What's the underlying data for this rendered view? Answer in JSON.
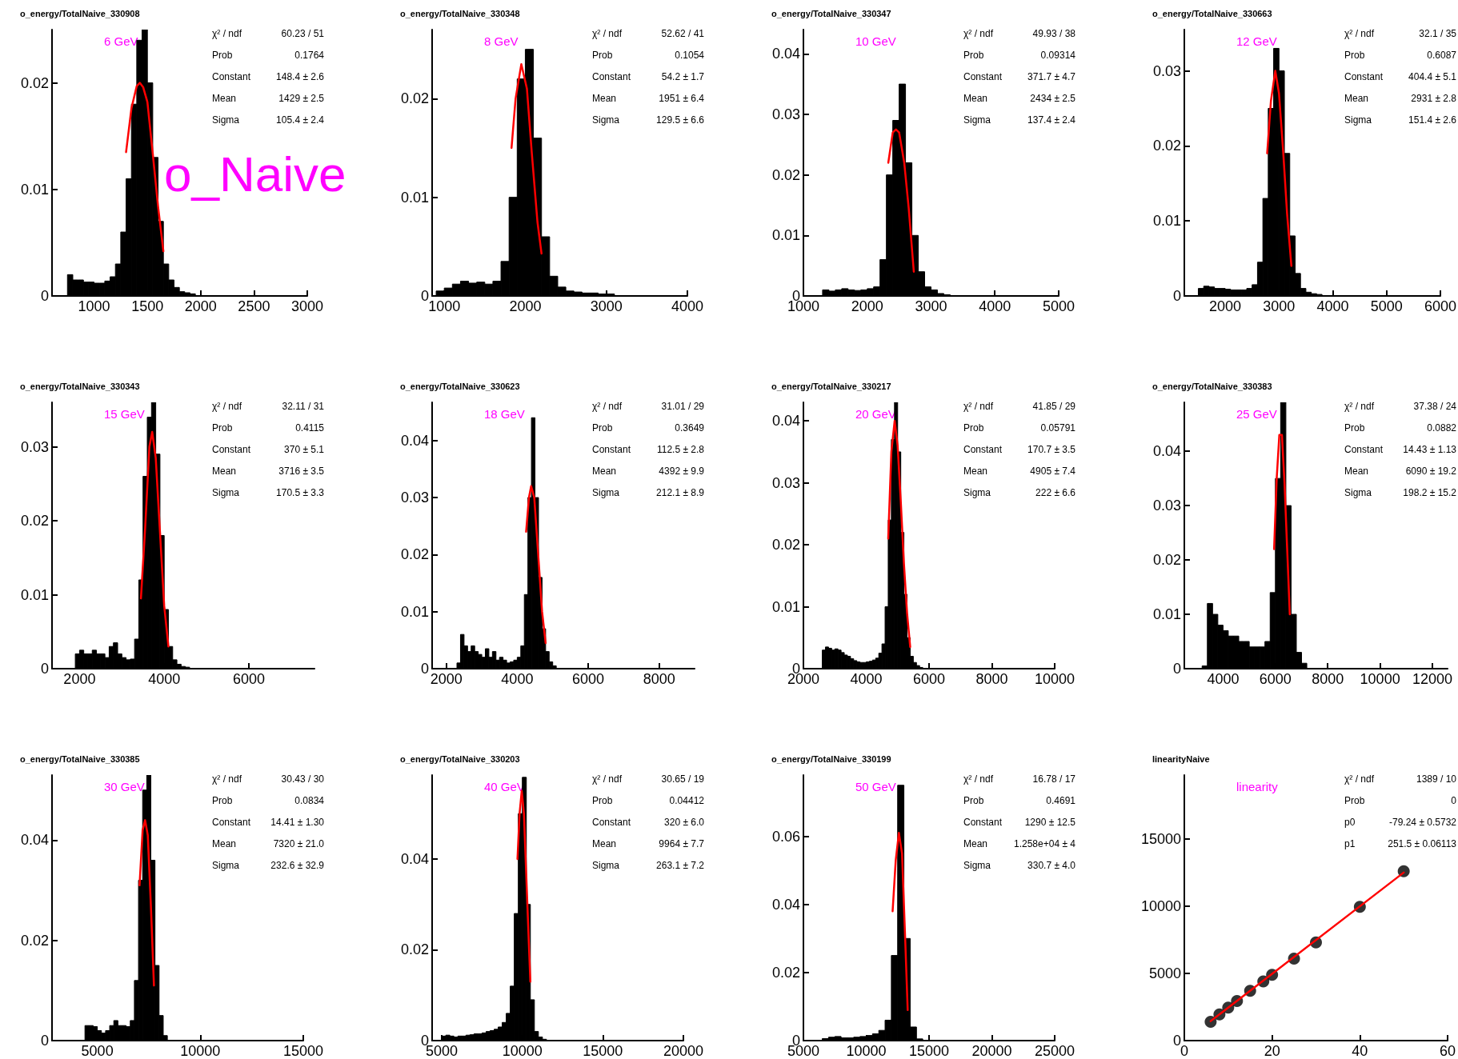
{
  "chart_data": [
    {
      "type": "histogram",
      "title": "o_energy/TotalNaive_330908",
      "subtitle": "o_Naive",
      "annotations": [
        "6 GeV",
        "χ² / ndf",
        "60.23 / 51",
        "Prob",
        "0.1764",
        "Constant",
        "148.4 ± 2.6",
        "Mean",
        "1429 ± 2.5",
        "Sigma",
        "105.4 ± 2.4"
      ],
      "xlim": [
        605,
        3000
      ],
      "xticks": [
        1000,
        1500,
        2000,
        2500,
        3000
      ],
      "ylim": [
        0,
        0.025
      ],
      "yticks": [
        0,
        0.01,
        0.02
      ],
      "series": [
        {
          "color": "#000000",
          "bins": [
            750,
            800,
            850,
            900,
            950,
            1000,
            1050,
            1100,
            1150,
            1200,
            1250,
            1300,
            1350,
            1400,
            1450,
            1500,
            1550,
            1600,
            1650,
            1700,
            1750,
            1800,
            1850,
            1900,
            1950,
            2000
          ],
          "values": [
            0.002,
            0.0015,
            0.0015,
            0.0013,
            0.0013,
            0.0012,
            0.0012,
            0.0014,
            0.0018,
            0.003,
            0.006,
            0.011,
            0.018,
            0.024,
            0.025,
            0.02,
            0.013,
            0.007,
            0.003,
            0.0015,
            0.0008,
            0.0004,
            0.0003,
            0.0002,
            null
          ]
        },
        {
          "type": "line",
          "color": "#ff0000",
          "x": [
            1300,
            1350,
            1400,
            1429,
            1460,
            1500,
            1550,
            1600,
            1650
          ],
          "values": [
            0.0135,
            0.0176,
            0.0197,
            0.02,
            0.0196,
            0.0182,
            0.0134,
            0.0084,
            0.0042
          ]
        }
      ]
    },
    {
      "type": "histogram",
      "title": "o_energy/TotalNaive_330348",
      "annotations": [
        "8 GeV",
        "χ² / ndf",
        "52.62 / 41",
        "Prob",
        "0.1054",
        "Constant",
        "54.2 ± 1.7",
        "Mean",
        "1951 ± 6.4",
        "Sigma",
        "129.5 ± 6.6"
      ],
      "xlim": [
        850,
        4000
      ],
      "xticks": [
        1000,
        2000,
        3000,
        4000
      ],
      "ylim": [
        0,
        0.027
      ],
      "yticks": [
        0,
        0.01,
        0.02
      ],
      "series": [
        {
          "color": "#000000",
          "bins": [
            900,
            1000,
            1100,
            1200,
            1300,
            1400,
            1500,
            1600,
            1700,
            1800,
            1900,
            2000,
            2100,
            2200,
            2300,
            2400,
            2500,
            2600,
            2700,
            2800,
            2900,
            3000,
            3100
          ],
          "values": [
            0.0005,
            0.0008,
            0.0012,
            0.0015,
            0.0013,
            0.0014,
            0.0012,
            0.0015,
            0.0035,
            0.01,
            0.022,
            0.025,
            0.016,
            0.006,
            0.002,
            0.0009,
            0.0005,
            0.0004,
            0.0003,
            0.0003,
            0.0002,
            0.0002
          ]
        },
        {
          "type": "line",
          "color": "#ff0000",
          "x": [
            1830,
            1880,
            1951,
            2020,
            2080,
            2150,
            2200
          ],
          "values": [
            0.015,
            0.02,
            0.0235,
            0.021,
            0.0145,
            0.0075,
            0.0043
          ]
        }
      ]
    },
    {
      "type": "histogram",
      "title": "o_energy/TotalNaive_330347",
      "annotations": [
        "10 GeV",
        "χ² / ndf",
        "49.93 / 38",
        "Prob",
        "0.09314",
        "Constant",
        "371.7 ± 4.7",
        "Mean",
        "2434 ± 2.5",
        "Sigma",
        "137.4 ± 2.4"
      ],
      "xlim": [
        1000,
        5000
      ],
      "xticks": [
        1000,
        2000,
        3000,
        4000,
        5000
      ],
      "ylim": [
        0,
        0.044
      ],
      "yticks": [
        0,
        0.01,
        0.02,
        0.03,
        0.04
      ],
      "series": [
        {
          "color": "#000000",
          "bins": [
            1300,
            1400,
            1500,
            1600,
            1700,
            1800,
            1900,
            2000,
            2100,
            2200,
            2300,
            2400,
            2500,
            2600,
            2700,
            2800,
            2900,
            3000,
            3100,
            3200,
            3300
          ],
          "values": [
            0.001,
            0.0008,
            0.001,
            0.0012,
            0.001,
            0.0009,
            0.001,
            0.0012,
            0.0015,
            0.006,
            0.02,
            0.029,
            0.035,
            0.022,
            0.01,
            0.004,
            0.0015,
            0.001,
            0.0004,
            0.0002
          ]
        },
        {
          "type": "line",
          "color": "#ff0000",
          "x": [
            2330,
            2400,
            2450,
            2500,
            2580,
            2650,
            2730
          ],
          "values": [
            0.022,
            0.027,
            0.0275,
            0.027,
            0.022,
            0.0145,
            0.004
          ]
        }
      ]
    },
    {
      "type": "histogram",
      "title": "o_energy/TotalNaive_330663",
      "annotations": [
        "12 GeV",
        "χ² / ndf",
        "32.1 / 35",
        "Prob",
        "0.6087",
        "Constant",
        "404.4 ± 5.1",
        "Mean",
        "2931 ± 2.8",
        "Sigma",
        "151.4 ± 2.6"
      ],
      "xlim": [
        1240,
        6000
      ],
      "xticks": [
        2000,
        3000,
        4000,
        5000,
        6000
      ],
      "ylim": [
        0,
        0.0355
      ],
      "yticks": [
        0,
        0.01,
        0.02,
        0.03
      ],
      "series": [
        {
          "color": "#000000",
          "bins": [
            1500,
            1600,
            1700,
            1800,
            1900,
            2000,
            2100,
            2200,
            2300,
            2400,
            2500,
            2600,
            2700,
            2800,
            2900,
            3000,
            3100,
            3200,
            3300,
            3400,
            3500,
            3600,
            3700,
            3800
          ],
          "values": [
            0.001,
            0.0013,
            0.0012,
            0.001,
            0.001,
            0.0009,
            0.0008,
            0.0008,
            0.0008,
            0.001,
            0.0015,
            0.0045,
            0.013,
            0.025,
            0.033,
            0.03,
            0.019,
            0.008,
            0.003,
            0.001,
            0.0005,
            0.0003,
            0.0002
          ]
        },
        {
          "type": "line",
          "color": "#ff0000",
          "x": [
            2780,
            2850,
            2931,
            3000,
            3080,
            3150,
            3230
          ],
          "values": [
            0.019,
            0.026,
            0.03,
            0.027,
            0.019,
            0.011,
            0.004
          ]
        }
      ]
    },
    {
      "type": "histogram",
      "title": "o_energy/TotalNaive_330343",
      "annotations": [
        "15 GeV",
        "χ² / ndf",
        "32.11 / 31",
        "Prob",
        "0.4115",
        "Constant",
        "370 ± 5.1",
        "Mean",
        "3716 ± 3.5",
        "Sigma",
        "170.5 ± 3.3"
      ],
      "xlim": [
        1350,
        7550
      ],
      "xticks": [
        2000,
        4000,
        6000
      ],
      "ylim": [
        0,
        0.036
      ],
      "yticks": [
        0,
        0.01,
        0.02,
        0.03
      ],
      "series": [
        {
          "color": "#000000",
          "bins": [
            1800,
            1900,
            2000,
            2100,
            2200,
            2300,
            2400,
            2500,
            2600,
            2700,
            2800,
            2900,
            3000,
            3100,
            3200,
            3300,
            3400,
            3500,
            3600,
            3700,
            3800,
            3900,
            4000,
            4100,
            4200,
            4300,
            4400,
            4500,
            4600
          ],
          "values": [
            null,
            0.002,
            0.0025,
            0.002,
            0.002,
            0.0025,
            0.002,
            0.002,
            0.0015,
            0.003,
            0.0035,
            0.002,
            0.0015,
            0.0012,
            0.0013,
            0.004,
            0.012,
            0.026,
            0.034,
            0.036,
            0.029,
            0.018,
            0.008,
            0.003,
            0.0012,
            0.0006,
            0.0003,
            0.0002
          ]
        },
        {
          "type": "line",
          "color": "#ff0000",
          "x": [
            3450,
            3550,
            3650,
            3716,
            3800,
            3900,
            4000,
            4100
          ],
          "values": [
            0.0095,
            0.019,
            0.03,
            0.032,
            0.0285,
            0.0185,
            0.0085,
            0.003
          ]
        }
      ]
    },
    {
      "type": "histogram",
      "title": "o_energy/TotalNaive_330623",
      "annotations": [
        "18 GeV",
        "χ² / ndf",
        "31.01 / 29",
        "Prob",
        "0.3649",
        "Constant",
        "112.5 ± 2.8",
        "Mean",
        "4392 ± 9.9",
        "Sigma",
        "212.1 ± 8.9"
      ],
      "xlim": [
        1600,
        9000
      ],
      "xticks": [
        2000,
        4000,
        6000,
        8000
      ],
      "ylim": [
        0,
        0.0467
      ],
      "yticks": [
        0,
        0.01,
        0.02,
        0.03,
        0.04
      ],
      "series": [
        {
          "color": "#000000",
          "bins": [
            2300,
            2400,
            2500,
            2600,
            2700,
            2800,
            2900,
            3000,
            3100,
            3200,
            3300,
            3400,
            3500,
            3600,
            3700,
            3800,
            3900,
            4000,
            4100,
            4200,
            4300,
            4400,
            4500,
            4600,
            4700,
            4800,
            4900,
            5000,
            5100,
            5200
          ],
          "values": [
            0.001,
            0.006,
            0.004,
            0.003,
            0.004,
            0.003,
            0.0025,
            0.002,
            0.0035,
            0.002,
            0.003,
            0.0015,
            0.002,
            0.0015,
            0.001,
            0.0012,
            0.0015,
            0.002,
            0.004,
            0.013,
            0.03,
            0.044,
            0.03,
            0.016,
            0.007,
            0.003,
            0.0012,
            0.0005,
            null
          ]
        },
        {
          "type": "line",
          "color": "#ff0000",
          "x": [
            4250,
            4330,
            4392,
            4480,
            4580,
            4700,
            4800
          ],
          "values": [
            0.024,
            0.03,
            0.032,
            0.03,
            0.021,
            0.01,
            0.0045
          ]
        }
      ]
    },
    {
      "type": "histogram",
      "title": "o_energy/TotalNaive_330217",
      "annotations": [
        "20 GeV",
        "χ² / ndf",
        "41.85 / 29",
        "Prob",
        "0.05791",
        "Constant",
        "170.7 ± 3.5",
        "Mean",
        "4905 ± 7.4",
        "Sigma",
        "222 ± 6.6"
      ],
      "xlim": [
        2000,
        10000
      ],
      "xticks": [
        2000,
        4000,
        6000,
        8000,
        10000
      ],
      "ylim": [
        0,
        0.043
      ],
      "yticks": [
        0,
        0.01,
        0.02,
        0.03,
        0.04
      ],
      "series": [
        {
          "color": "#000000",
          "bins": [
            2600,
            2700,
            2800,
            2900,
            3000,
            3100,
            3200,
            3300,
            3400,
            3500,
            3600,
            3700,
            3800,
            3900,
            4000,
            4100,
            4200,
            4300,
            4400,
            4500,
            4600,
            4700,
            4800,
            4900,
            5000,
            5100,
            5200,
            5300,
            5400,
            5500,
            5600,
            5700,
            5800
          ],
          "values": [
            0.003,
            0.0035,
            0.0033,
            0.003,
            0.0032,
            0.003,
            0.0026,
            0.0022,
            0.002,
            0.0016,
            0.0013,
            0.0011,
            0.001,
            0.001,
            0.0011,
            0.0012,
            0.0014,
            0.0017,
            0.0025,
            0.004,
            0.01,
            0.024,
            0.037,
            0.043,
            0.035,
            0.022,
            0.012,
            0.005,
            0.002,
            0.001,
            0.0005,
            0.0002
          ]
        },
        {
          "type": "line",
          "color": "#ff0000",
          "x": [
            4700,
            4800,
            4905,
            5000,
            5100,
            5200,
            5300,
            5400
          ],
          "values": [
            0.021,
            0.035,
            0.04,
            0.036,
            0.027,
            0.017,
            0.009,
            0.0035
          ]
        }
      ]
    },
    {
      "type": "histogram",
      "title": "o_energy/TotalNaive_330383",
      "annotations": [
        "25 GeV",
        "χ² / ndf",
        "37.38 / 24",
        "Prob",
        "0.0882",
        "Constant",
        "14.43 ± 1.13",
        "Mean",
        "6090 ± 19.2",
        "Sigma",
        "198.2 ± 15.2"
      ],
      "xlim": [
        2520,
        12580
      ],
      "xticks": [
        4000,
        6000,
        8000,
        10000,
        12000
      ],
      "ylim": [
        0,
        0.049
      ],
      "yticks": [
        0,
        0.01,
        0.02,
        0.03,
        0.04
      ],
      "series": [
        {
          "color": "#000000",
          "bins": [
            3200,
            3400,
            3600,
            3800,
            4000,
            4200,
            4400,
            4600,
            4800,
            5000,
            5200,
            5400,
            5600,
            5800,
            6000,
            6200,
            6400,
            6600,
            6800,
            7000,
            7200
          ],
          "values": [
            0.0005,
            0.012,
            0.01,
            0.008,
            0.007,
            0.006,
            0.006,
            0.005,
            0.005,
            0.004,
            0.004,
            0.004,
            0.005,
            0.014,
            0.035,
            0.049,
            0.03,
            0.01,
            0.003,
            0.001
          ]
        },
        {
          "type": "line",
          "color": "#ff0000",
          "x": [
            5950,
            6050,
            6150,
            6250,
            6350,
            6450,
            6550
          ],
          "values": [
            0.022,
            0.035,
            0.043,
            0.043,
            0.034,
            0.022,
            0.01
          ]
        }
      ]
    },
    {
      "type": "histogram",
      "title": "o_energy/TotalNaive_330385",
      "annotations": [
        "30 GeV",
        "χ² / ndf",
        "30.43 / 30",
        "Prob",
        "0.0834",
        "Constant",
        "14.41 ± 1.30",
        "Mean",
        "7320 ± 21.0",
        "Sigma",
        "232.6 ± 32.9"
      ],
      "xlim": [
        2800,
        15000
      ],
      "xticks": [
        5000,
        10000,
        15000
      ],
      "ylim": [
        0,
        0.053
      ],
      "yticks": [
        0,
        0.02,
        0.04
      ],
      "series": [
        {
          "color": "#000000",
          "bins": [
            4400,
            4600,
            4800,
            5000,
            5200,
            5400,
            5600,
            5800,
            6000,
            6200,
            6400,
            6600,
            6800,
            7000,
            7200,
            7400,
            7600,
            7800,
            8000,
            8200,
            8400
          ],
          "values": [
            0.003,
            0.003,
            0.0028,
            0.002,
            0.0015,
            0.002,
            0.003,
            0.004,
            0.003,
            0.003,
            0.0028,
            0.004,
            0.012,
            0.032,
            0.05,
            0.053,
            0.036,
            0.015,
            0.005,
            0.001
          ]
        },
        {
          "type": "line",
          "color": "#ff0000",
          "x": [
            7050,
            7200,
            7320,
            7450,
            7600,
            7750
          ],
          "values": [
            0.031,
            0.042,
            0.044,
            0.041,
            0.027,
            0.011
          ]
        }
      ]
    },
    {
      "type": "histogram",
      "title": "o_energy/TotalNaive_330203",
      "annotations": [
        "40 GeV",
        "χ² / ndf",
        "30.65 / 19",
        "Prob",
        "0.04412",
        "Constant",
        "320 ± 6.0",
        "Mean",
        "9964 ± 7.7",
        "Sigma",
        "263.1 ± 7.2"
      ],
      "xlim": [
        4400,
        20000
      ],
      "xticks": [
        5000,
        10000,
        15000,
        20000
      ],
      "ylim": [
        0,
        0.0585
      ],
      "yticks": [
        0,
        0.02,
        0.04
      ],
      "series": [
        {
          "color": "#000000",
          "bins": [
            5000,
            5250,
            5500,
            5750,
            6000,
            6250,
            6500,
            6750,
            7000,
            7250,
            7500,
            7750,
            8000,
            8250,
            8500,
            8750,
            9000,
            9250,
            9500,
            9750,
            10000,
            10250,
            10500,
            10750,
            11000,
            11250,
            11500
          ],
          "values": [
            0.001,
            0.0012,
            0.001,
            0.0008,
            0.001,
            0.001,
            0.0012,
            0.0013,
            0.0015,
            0.0015,
            0.0017,
            0.002,
            0.0022,
            0.0025,
            0.003,
            0.004,
            0.006,
            0.012,
            0.028,
            0.05,
            0.058,
            0.03,
            0.009,
            0.002,
            0.0008,
            0.0003
          ]
        },
        {
          "type": "line",
          "color": "#ff0000",
          "x": [
            9700,
            9830,
            9964,
            10100,
            10250,
            10400,
            10500
          ],
          "values": [
            0.04,
            0.05,
            0.055,
            0.05,
            0.036,
            0.022,
            0.013
          ]
        }
      ]
    },
    {
      "type": "histogram",
      "title": "o_energy/TotalNaive_330199",
      "annotations": [
        "50 GeV",
        "χ² / ndf",
        "16.78 / 17",
        "Prob",
        "0.4691",
        "Constant",
        "1290 ± 12.5",
        "Mean",
        "1.258e+04 ± 4",
        "Sigma",
        "330.7 ± 4.0"
      ],
      "xlim": [
        5000,
        25000
      ],
      "xticks": [
        5000,
        10000,
        15000,
        20000,
        25000
      ],
      "ylim": [
        0,
        0.078
      ],
      "yticks": [
        0,
        0.02,
        0.04,
        0.06
      ],
      "series": [
        {
          "color": "#000000",
          "bins": [
            6500,
            7000,
            7500,
            8000,
            8500,
            9000,
            9500,
            10000,
            10500,
            11000,
            11500,
            12000,
            12500,
            13000,
            13500,
            14000,
            14500
          ],
          "values": [
            0.0006,
            0.001,
            0.0012,
            0.0008,
            0.0008,
            0.001,
            0.0012,
            0.0015,
            0.002,
            0.003,
            0.006,
            0.025,
            0.075,
            0.03,
            0.004,
            0.0005
          ]
        },
        {
          "type": "line",
          "color": "#ff0000",
          "x": [
            12100,
            12350,
            12600,
            12850,
            13100,
            13300
          ],
          "values": [
            0.038,
            0.053,
            0.061,
            0.055,
            0.03,
            0.009
          ]
        }
      ]
    },
    {
      "type": "scatter",
      "title": "linearityNaive",
      "annotations": [
        "linearity",
        "χ² / ndf",
        "1389 / 10",
        "Prob",
        "0",
        "p0",
        "-79.24 ± 0.5732",
        "p1",
        "251.5 ± 0.06113"
      ],
      "xlim": [
        0,
        60
      ],
      "xticks": [
        0,
        20,
        40,
        60
      ],
      "ylim": [
        0,
        19750
      ],
      "yticks": [
        0,
        5000,
        10000,
        15000
      ],
      "series": [
        {
          "marker": "circle",
          "color": "#000000",
          "x": [
            6,
            8,
            10,
            12,
            15,
            18,
            20,
            25,
            30,
            40,
            50
          ],
          "values": [
            1400,
            1950,
            2450,
            2950,
            3700,
            4400,
            4900,
            6100,
            7300,
            9950,
            12600
          ]
        },
        {
          "type": "line",
          "color": "#ff0000",
          "x": [
            6,
            50
          ],
          "values": [
            1450,
            12500
          ]
        }
      ]
    }
  ]
}
